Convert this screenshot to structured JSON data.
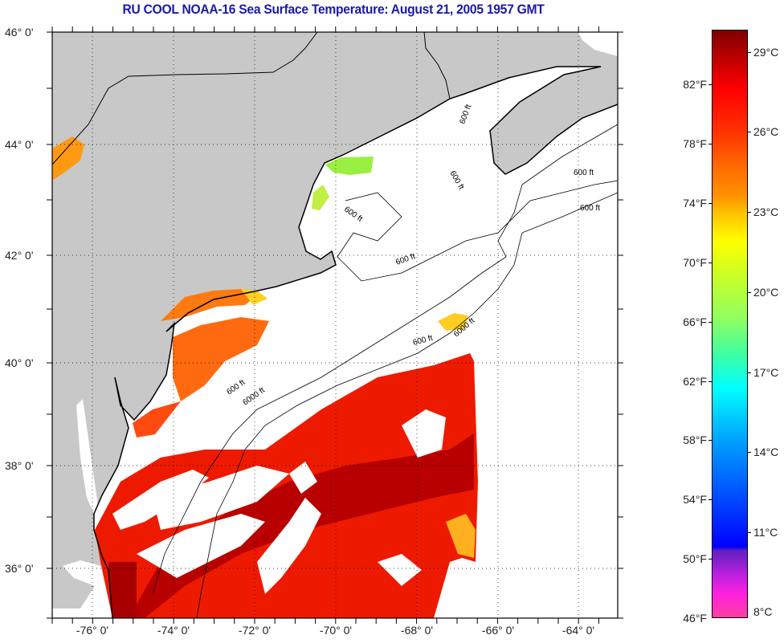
{
  "title": "RU COOL  NOAA-16  Sea Surface Temperature:  August 21, 2005 1957 GMT",
  "lat_labels": [
    "46° 0'",
    "44° 0'",
    "42° 0'",
    "40° 0'",
    "38° 0'",
    "36° 0'"
  ],
  "lon_labels": [
    "-76° 0'",
    "-74° 0'",
    "-72° 0'",
    "-70° 0'",
    "-68° 0'",
    "-66° 0'",
    "-64° 0'"
  ],
  "contour_labels": [
    "600 ft",
    "6000 ft"
  ],
  "colorbar": {
    "fahrenheit_labels": [
      "82°F",
      "78°F",
      "74°F",
      "70°F",
      "66°F",
      "62°F",
      "58°F",
      "54°F",
      "50°F",
      "46°F"
    ],
    "fahrenheit_values": [
      82,
      78,
      74,
      70,
      66,
      62,
      58,
      54,
      50,
      46
    ],
    "celsius_labels": [
      "29°C",
      "26°C",
      "23°C",
      "20°C",
      "17°C",
      "14°C",
      "11°C",
      "8°C"
    ],
    "celsius_values": [
      29,
      26,
      23,
      20,
      17,
      14,
      11,
      8
    ],
    "range_f": [
      46,
      85.7
    ]
  },
  "colors": {
    "land": "#c8c8c8",
    "cloud": "#ffffff",
    "title": "#1a1aa8"
  }
}
